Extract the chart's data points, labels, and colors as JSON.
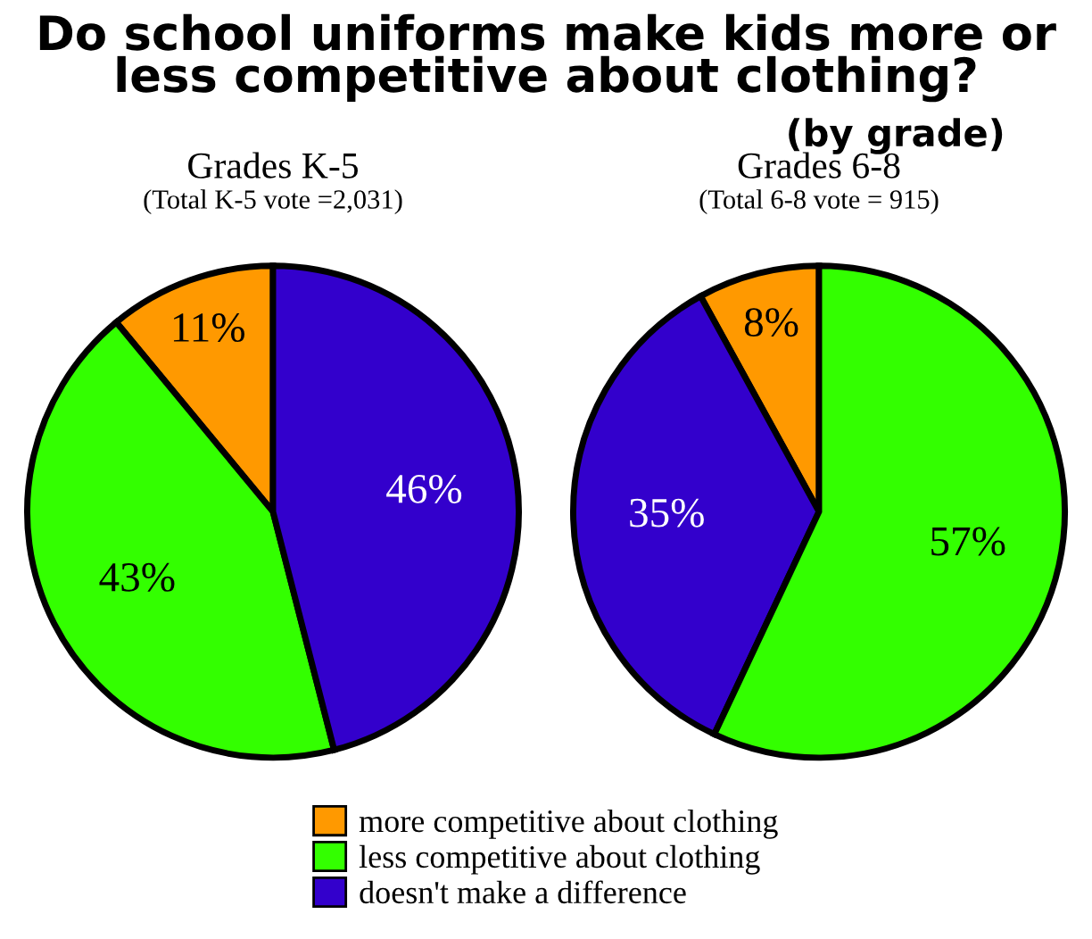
{
  "chart_data": [
    {
      "type": "pie",
      "title": "Grades K-5",
      "subtitle": "(Total K-5 vote =2,031)",
      "annotations": [
        "Do school uniforms make kids more or less competitive about clothing?",
        "(by grade)"
      ],
      "categories": [
        "more competitive about clothing",
        "less competitive about clothing",
        "doesn't make a difference"
      ],
      "values": [
        11,
        43,
        46
      ],
      "value_labels": [
        "11%",
        "43%",
        "46%"
      ],
      "colors": [
        "#ff9900",
        "#33ff00",
        "#3300cc"
      ],
      "legend": "bottom"
    },
    {
      "type": "pie",
      "title": "Grades 6-8",
      "subtitle": "(Total 6-8 vote = 915)",
      "categories": [
        null,
        null,
        null
      ],
      "values": [
        8,
        35,
        57
      ],
      "value_labels": [
        "8%",
        "35%",
        "57%"
      ],
      "colors": [
        "#ff9900",
        "#3300cc",
        "#33ff00"
      ]
    }
  ]
}
